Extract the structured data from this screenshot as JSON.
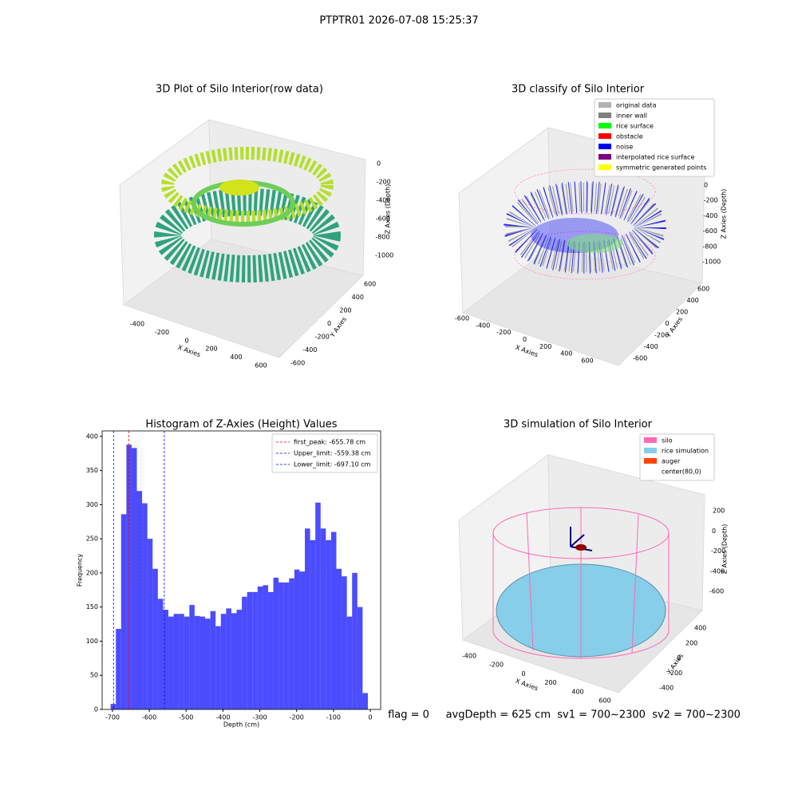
{
  "title": "PTPTR01 2026-07-08 15:25:37",
  "footer": "flag = 0     avgDepth = 625 cm  sv1 = 700~2300  sv2 = 700~2300",
  "chart_data": [
    {
      "type": "scatter3d",
      "title": "3D Plot of Silo Interior(row data)",
      "xlabel": "X Axies",
      "ylabel": "Y Axies",
      "zlabel": "Z Axies (Depth)",
      "xticks": [
        -400,
        -200,
        0,
        200,
        400,
        600
      ],
      "yticks": [
        -600,
        -400,
        -200,
        0,
        200,
        400,
        600
      ],
      "zticks": [
        0,
        -200,
        -400,
        -600,
        -800,
        -1000
      ]
    },
    {
      "type": "scatter3d",
      "title": "3D classify of Silo Interior",
      "xlabel": "X Axies",
      "ylabel": "Y Axies",
      "zlabel": "Z Axies (Depth)",
      "xticks": [
        -600,
        -400,
        -200,
        0,
        200,
        400,
        600
      ],
      "yticks": [
        -600,
        -400,
        -200,
        0,
        200,
        400,
        600
      ],
      "zticks": [
        0,
        -200,
        -400,
        -600,
        -800,
        -1000
      ],
      "legend": [
        {
          "name": "original data",
          "color": "#b3b3b3"
        },
        {
          "name": "inner wall",
          "color": "#808080"
        },
        {
          "name": "rice surface",
          "color": "#00ff00"
        },
        {
          "name": "obstacle",
          "color": "#ff0000"
        },
        {
          "name": "noise",
          "color": "#0000ff"
        },
        {
          "name": "interpolated rice surface",
          "color": "#800080"
        },
        {
          "name": "symmetric generated points",
          "color": "#ffff00"
        }
      ]
    },
    {
      "type": "histogram",
      "title": "Histogram of Z-Axies (Height) Values",
      "xlabel": "Depth (cm)",
      "ylabel": "Frequency",
      "color": "#0000ff",
      "bins": [
        -705,
        -690.75,
        -676.5,
        -662.25,
        -648,
        -633.75,
        -619.5,
        -605.25,
        -591,
        -576.75,
        -562.5,
        -548.25,
        -534,
        -519.75,
        -505.5,
        -491.25,
        -477,
        -462.75,
        -448.5,
        -434.25,
        -420,
        -405.75,
        -391.5,
        -377.25,
        -363,
        -348.75,
        -334.5,
        -320.25,
        -306,
        -291.75,
        -277.5,
        -263.25,
        -249,
        -234.75,
        -220.5,
        -206.25,
        -192,
        -177.75,
        -163.5,
        -149.25,
        -135,
        -120.75,
        -106.5,
        -92.25,
        -78,
        -63.75,
        -49.5,
        -35.25,
        -21,
        -6.75
      ],
      "counts": [
        8,
        118,
        286,
        388,
        383,
        320,
        302,
        250,
        206,
        162,
        146,
        136,
        140,
        140,
        136,
        153,
        137,
        136,
        133,
        144,
        122,
        140,
        148,
        141,
        146,
        165,
        172,
        172,
        180,
        182,
        172,
        193,
        186,
        186,
        192,
        205,
        202,
        265,
        248,
        303,
        265,
        248,
        260,
        206,
        195,
        136,
        200,
        150,
        24
      ],
      "xlim": [
        -728,
        28
      ],
      "ylim": [
        0,
        408
      ],
      "xticks": [
        -700,
        -600,
        -500,
        -400,
        -300,
        -200,
        -100,
        0
      ],
      "yticks": [
        0,
        50,
        100,
        150,
        200,
        250,
        300,
        350,
        400
      ],
      "lines": [
        {
          "name": "first_peak: -655.78 cm",
          "value": -655.78,
          "color": "#ff0000"
        },
        {
          "name": "Upper_limit: -559.38 cm",
          "value": -559.38,
          "color": "#0000ff"
        },
        {
          "name": "Lower_limit: -697.10 cm",
          "value": -697.1,
          "color": "#0000ff"
        }
      ],
      "legend_position": "upper right"
    },
    {
      "type": "surface3d",
      "title": "3D simulation of Silo Interior",
      "xlabel": "X Axies",
      "ylabel": "Y Axies",
      "zlabel": "Z Axies (Depth)",
      "xticks": [
        -400,
        -200,
        0,
        200,
        400,
        600
      ],
      "yticks": [
        -400,
        -200,
        0,
        200,
        400
      ],
      "zticks": [
        200,
        0,
        -200,
        -400,
        -600
      ],
      "legend": [
        {
          "name": "silo",
          "color": "#ff69b4"
        },
        {
          "name": "rice simulation",
          "color": "#87ceeb"
        },
        {
          "name": "auger",
          "color": "#ff4500"
        },
        {
          "name": "center(80,0)",
          "color": "#ffffff"
        }
      ]
    }
  ]
}
